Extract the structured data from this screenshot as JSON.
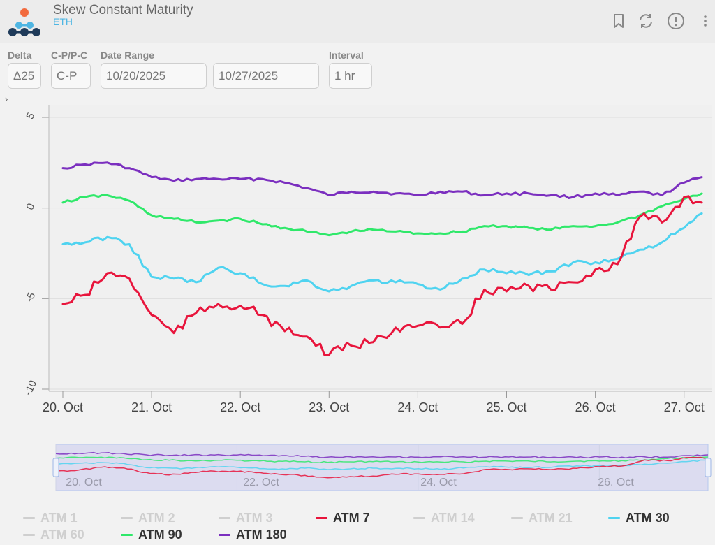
{
  "header": {
    "title": "Skew Constant Maturity",
    "subtitle": "ETH"
  },
  "controls": {
    "delta": {
      "label": "Delta",
      "value": "Δ25"
    },
    "cp": {
      "label": "C-P/P-C",
      "value": "C-P"
    },
    "date_range": {
      "label": "Date Range",
      "start": "10/20/2025",
      "end": "10/27/2025"
    },
    "interval": {
      "label": "Interval",
      "value": "1 hr"
    }
  },
  "colors": {
    "atm7": "#e8153c",
    "atm30": "#4fd3f0",
    "atm90": "#2fe86a",
    "atm180": "#7b2fbf",
    "off": "#cfcfcf"
  },
  "chart_data": {
    "type": "line",
    "title": "",
    "xlabel": "",
    "ylabel": "",
    "ylim": [
      -10,
      5
    ],
    "yticks": [
      "5",
      "0",
      "-5",
      "-10"
    ],
    "xlim": [
      "2025-10-20",
      "2025-10-27T06:00"
    ],
    "xticks": [
      "20. Oct",
      "21. Oct",
      "22. Oct",
      "23. Oct",
      "24. Oct",
      "25. Oct",
      "26. Oct",
      "27. Oct"
    ],
    "navigator_ticks": [
      "20. Oct",
      "22. Oct",
      "24. Oct",
      "26. Oct"
    ],
    "grid": true,
    "legend": "bottom",
    "x_days": [
      0,
      0.25,
      0.5,
      0.75,
      1,
      1.25,
      1.5,
      1.75,
      2,
      2.25,
      2.5,
      2.75,
      3,
      3.25,
      3.5,
      3.75,
      4,
      4.25,
      4.5,
      4.75,
      5,
      5.25,
      5.5,
      5.75,
      6,
      6.25,
      6.5,
      6.75,
      7,
      7.2
    ],
    "series": [
      {
        "name": "ATM 7",
        "visible": true,
        "color": "#e8153c",
        "values": [
          -5.3,
          -4.8,
          -3.6,
          -3.9,
          -5.9,
          -6.9,
          -5.8,
          -5.3,
          -5.4,
          -5.9,
          -6.8,
          -7.1,
          -8.1,
          -7.6,
          -7.4,
          -6.6,
          -6.5,
          -6.6,
          -6.4,
          -4.5,
          -4.6,
          -4.3,
          -4.5,
          -4.1,
          -3.4,
          -3.1,
          -0.5,
          -0.8,
          0.6,
          0.3
        ]
      },
      {
        "name": "ATM 30",
        "visible": true,
        "color": "#4fd3f0",
        "values": [
          -2.0,
          -1.9,
          -1.6,
          -2.0,
          -3.8,
          -3.9,
          -4.1,
          -3.3,
          -3.6,
          -4.2,
          -4.3,
          -4.0,
          -4.6,
          -4.3,
          -4.0,
          -4.1,
          -4.2,
          -4.5,
          -3.9,
          -3.4,
          -3.6,
          -3.7,
          -3.5,
          -3.0,
          -3.0,
          -2.8,
          -2.3,
          -1.9,
          -1.1,
          -0.3
        ]
      },
      {
        "name": "ATM 90",
        "visible": true,
        "color": "#2fe86a",
        "values": [
          0.3,
          0.6,
          0.7,
          0.4,
          -0.4,
          -0.6,
          -0.8,
          -0.7,
          -0.6,
          -0.9,
          -1.1,
          -1.3,
          -1.5,
          -1.3,
          -1.2,
          -1.3,
          -1.4,
          -1.4,
          -1.3,
          -1.0,
          -1.0,
          -1.1,
          -1.2,
          -1.0,
          -1.0,
          -0.8,
          -0.4,
          0.1,
          0.5,
          0.8
        ]
      },
      {
        "name": "ATM 180",
        "visible": true,
        "color": "#7b2fbf",
        "values": [
          2.2,
          2.4,
          2.5,
          2.2,
          1.7,
          1.5,
          1.6,
          1.6,
          1.6,
          1.6,
          1.4,
          1.1,
          0.7,
          0.9,
          0.9,
          0.8,
          0.7,
          0.9,
          0.9,
          0.7,
          0.8,
          0.8,
          0.7,
          0.6,
          0.8,
          0.7,
          0.9,
          0.7,
          1.4,
          1.7
        ]
      }
    ],
    "legend_items": [
      {
        "name": "ATM 1",
        "visible": false
      },
      {
        "name": "ATM 2",
        "visible": false
      },
      {
        "name": "ATM 3",
        "visible": false
      },
      {
        "name": "ATM 7",
        "visible": true
      },
      {
        "name": "ATM 14",
        "visible": false
      },
      {
        "name": "ATM 21",
        "visible": false
      },
      {
        "name": "ATM 30",
        "visible": true
      },
      {
        "name": "ATM 60",
        "visible": false
      },
      {
        "name": "ATM 90",
        "visible": true
      },
      {
        "name": "ATM 180",
        "visible": true
      }
    ]
  }
}
